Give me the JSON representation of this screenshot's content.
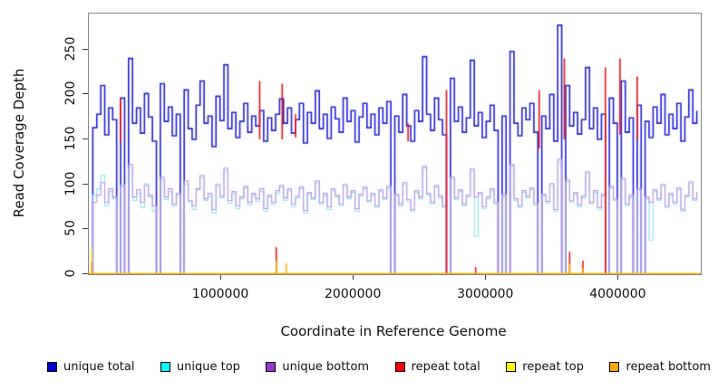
{
  "chart_data": {
    "type": "line",
    "title": "",
    "xlabel": "Coordinate in Reference Genome",
    "ylabel": "Read Coverage Depth",
    "xlim": [
      0,
      4620000
    ],
    "ylim": [
      0,
      290
    ],
    "xticks": [
      1000000,
      2000000,
      3000000,
      4000000
    ],
    "yticks": [
      0,
      50,
      100,
      150,
      200,
      250
    ],
    "grid": false,
    "legend_position": "bottom",
    "x_step": 30000,
    "series": [
      {
        "name": "unique total",
        "color": "#0000CC",
        "line_color": "#2020D8",
        "width": 1.6,
        "values": [
          0,
          163,
          178,
          210,
          155,
          185,
          172,
          0,
          196,
          0,
          240,
          168,
          185,
          157,
          201,
          175,
          148,
          0,
          212,
          170,
          186,
          154,
          178,
          0,
          205,
          162,
          150,
          188,
          215,
          168,
          176,
          142,
          198,
          171,
          233,
          162,
          180,
          152,
          170,
          190,
          158,
          176,
          165,
          182,
          148,
          174,
          160,
          178,
          195,
          168,
          185,
          157,
          172,
          190,
          146,
          180,
          168,
          204,
          162,
          178,
          151,
          186,
          173,
          158,
          196,
          170,
          182,
          147,
          175,
          190,
          163,
          178,
          155,
          185,
          168,
          192,
          0,
          176,
          158,
          200,
          165,
          148,
          182,
          170,
          242,
          178,
          160,
          196,
          172,
          155,
          0,
          218,
          170,
          186,
          158,
          174,
          238,
          165,
          180,
          152,
          170,
          188,
          160,
          0,
          176,
          0,
          248,
          168,
          154,
          185,
          172,
          190,
          158,
          0,
          176,
          162,
          200,
          148,
          277,
          0,
          210,
          165,
          180,
          156,
          172,
          230,
          162,
          185,
          150,
          178,
          0,
          196,
          168,
          0,
          215,
          158,
          174,
          0,
          188,
          0,
          170,
          152,
          186,
          168,
          200,
          155,
          178,
          162,
          190,
          148,
          175,
          205,
          168,
          182
        ]
      },
      {
        "name": "unique top",
        "color": "#00FFFF",
        "line_color": "#8AE5F0",
        "width": 1.1,
        "values": [
          0,
          88,
          95,
          110,
          76,
          92,
          84,
          0,
          99,
          0,
          118,
          82,
          90,
          74,
          101,
          86,
          70,
          0,
          105,
          83,
          92,
          76,
          88,
          0,
          100,
          80,
          72,
          94,
          108,
          82,
          87,
          68,
          98,
          85,
          115,
          79,
          90,
          73,
          84,
          96,
          77,
          88,
          81,
          92,
          70,
          86,
          78,
          90,
          97,
          82,
          93,
          75,
          85,
          95,
          68,
          89,
          83,
          102,
          78,
          88,
          72,
          93,
          86,
          76,
          98,
          84,
          91,
          70,
          87,
          95,
          80,
          88,
          74,
          92,
          83,
          96,
          0,
          87,
          76,
          100,
          81,
          70,
          91,
          84,
          118,
          88,
          78,
          97,
          85,
          74,
          0,
          106,
          83,
          92,
          76,
          86,
          115,
          42,
          89,
          73,
          84,
          93,
          78,
          0,
          87,
          0,
          120,
          82,
          74,
          91,
          85,
          94,
          77,
          0,
          87,
          79,
          99,
          70,
          125,
          0,
          103,
          80,
          89,
          75,
          85,
          112,
          78,
          91,
          72,
          87,
          0,
          96,
          82,
          0,
          105,
          76,
          86,
          0,
          93,
          0,
          84,
          38,
          92,
          82,
          98,
          74,
          88,
          78,
          94,
          70,
          86,
          101,
          82,
          90
        ]
      },
      {
        "name": "unique bottom",
        "color": "#9933CC",
        "line_color": "#BE8FE6",
        "width": 1.1,
        "values": [
          0,
          80,
          88,
          102,
          80,
          95,
          86,
          0,
          98,
          0,
          122,
          86,
          94,
          80,
          99,
          88,
          76,
          0,
          108,
          86,
          95,
          78,
          90,
          0,
          104,
          82,
          76,
          95,
          110,
          84,
          90,
          72,
          100,
          87,
          118,
          82,
          92,
          76,
          86,
          98,
          80,
          90,
          84,
          95,
          73,
          88,
          80,
          93,
          99,
          85,
          95,
          78,
          87,
          97,
          71,
          91,
          85,
          104,
          80,
          90,
          75,
          95,
          88,
          78,
          100,
          86,
          93,
          73,
          89,
          97,
          82,
          90,
          76,
          94,
          85,
          98,
          0,
          89,
          78,
          102,
          83,
          72,
          93,
          86,
          120,
          90,
          80,
          99,
          87,
          76,
          0,
          108,
          85,
          94,
          78,
          88,
          117,
          86,
          91,
          75,
          86,
          95,
          80,
          0,
          89,
          0,
          122,
          84,
          76,
          93,
          87,
          96,
          79,
          0,
          89,
          81,
          101,
          72,
          128,
          0,
          105,
          82,
          91,
          77,
          87,
          114,
          80,
          93,
          74,
          89,
          0,
          98,
          84,
          0,
          107,
          78,
          88,
          0,
          95,
          0,
          86,
          80,
          94,
          84,
          100,
          76,
          90,
          80,
          96,
          72,
          88,
          103,
          84,
          92
        ]
      }
    ],
    "spike_series": [
      {
        "name": "repeat total",
        "color": "#EE1111",
        "width": 1.6,
        "segments": [
          {
            "x": 240000,
            "y0": 148,
            "y1": 196
          },
          {
            "x": 1290000,
            "y0": 150,
            "y1": 215
          },
          {
            "x": 1415000,
            "y0": 0,
            "y1": 30
          },
          {
            "x": 1460000,
            "y0": 150,
            "y1": 212
          },
          {
            "x": 1560000,
            "y0": 152,
            "y1": 178
          },
          {
            "x": 2410000,
            "y0": 148,
            "y1": 168
          },
          {
            "x": 2700000,
            "y0": 0,
            "y1": 205
          },
          {
            "x": 2920000,
            "y0": 0,
            "y1": 8
          },
          {
            "x": 3400000,
            "y0": 140,
            "y1": 205
          },
          {
            "x": 3590000,
            "y0": 150,
            "y1": 240
          },
          {
            "x": 3630000,
            "y0": 0,
            "y1": 25
          },
          {
            "x": 3730000,
            "y0": 0,
            "y1": 15
          },
          {
            "x": 3900000,
            "y0": 0,
            "y1": 230
          },
          {
            "x": 4010000,
            "y0": 155,
            "y1": 240
          },
          {
            "x": 4140000,
            "y0": 150,
            "y1": 220
          }
        ]
      },
      {
        "name": "repeat top",
        "color": "#FFFF00",
        "width": 1.4,
        "baseline": 0,
        "segments": [
          {
            "x": 20000,
            "y0": 0,
            "y1": 30
          }
        ]
      },
      {
        "name": "repeat bottom",
        "color": "#FFA500",
        "width": 1.5,
        "baseline": 0,
        "segments": [
          {
            "x": 20000,
            "y0": 0,
            "y1": 14
          },
          {
            "x": 1415000,
            "y0": 0,
            "y1": 15
          },
          {
            "x": 1490000,
            "y0": 0,
            "y1": 12
          },
          {
            "x": 3630000,
            "y0": 0,
            "y1": 12
          },
          {
            "x": 3730000,
            "y0": 0,
            "y1": 7
          }
        ]
      }
    ]
  },
  "legend": {
    "items": [
      {
        "label": "unique total",
        "color": "#0000CC"
      },
      {
        "label": "unique top",
        "color": "#00FFFF"
      },
      {
        "label": "unique bottom",
        "color": "#9933CC"
      },
      {
        "label": "repeat total",
        "color": "#FF0000"
      },
      {
        "label": "repeat top",
        "color": "#FFFF00"
      },
      {
        "label": "repeat bottom",
        "color": "#FFA500"
      }
    ]
  }
}
